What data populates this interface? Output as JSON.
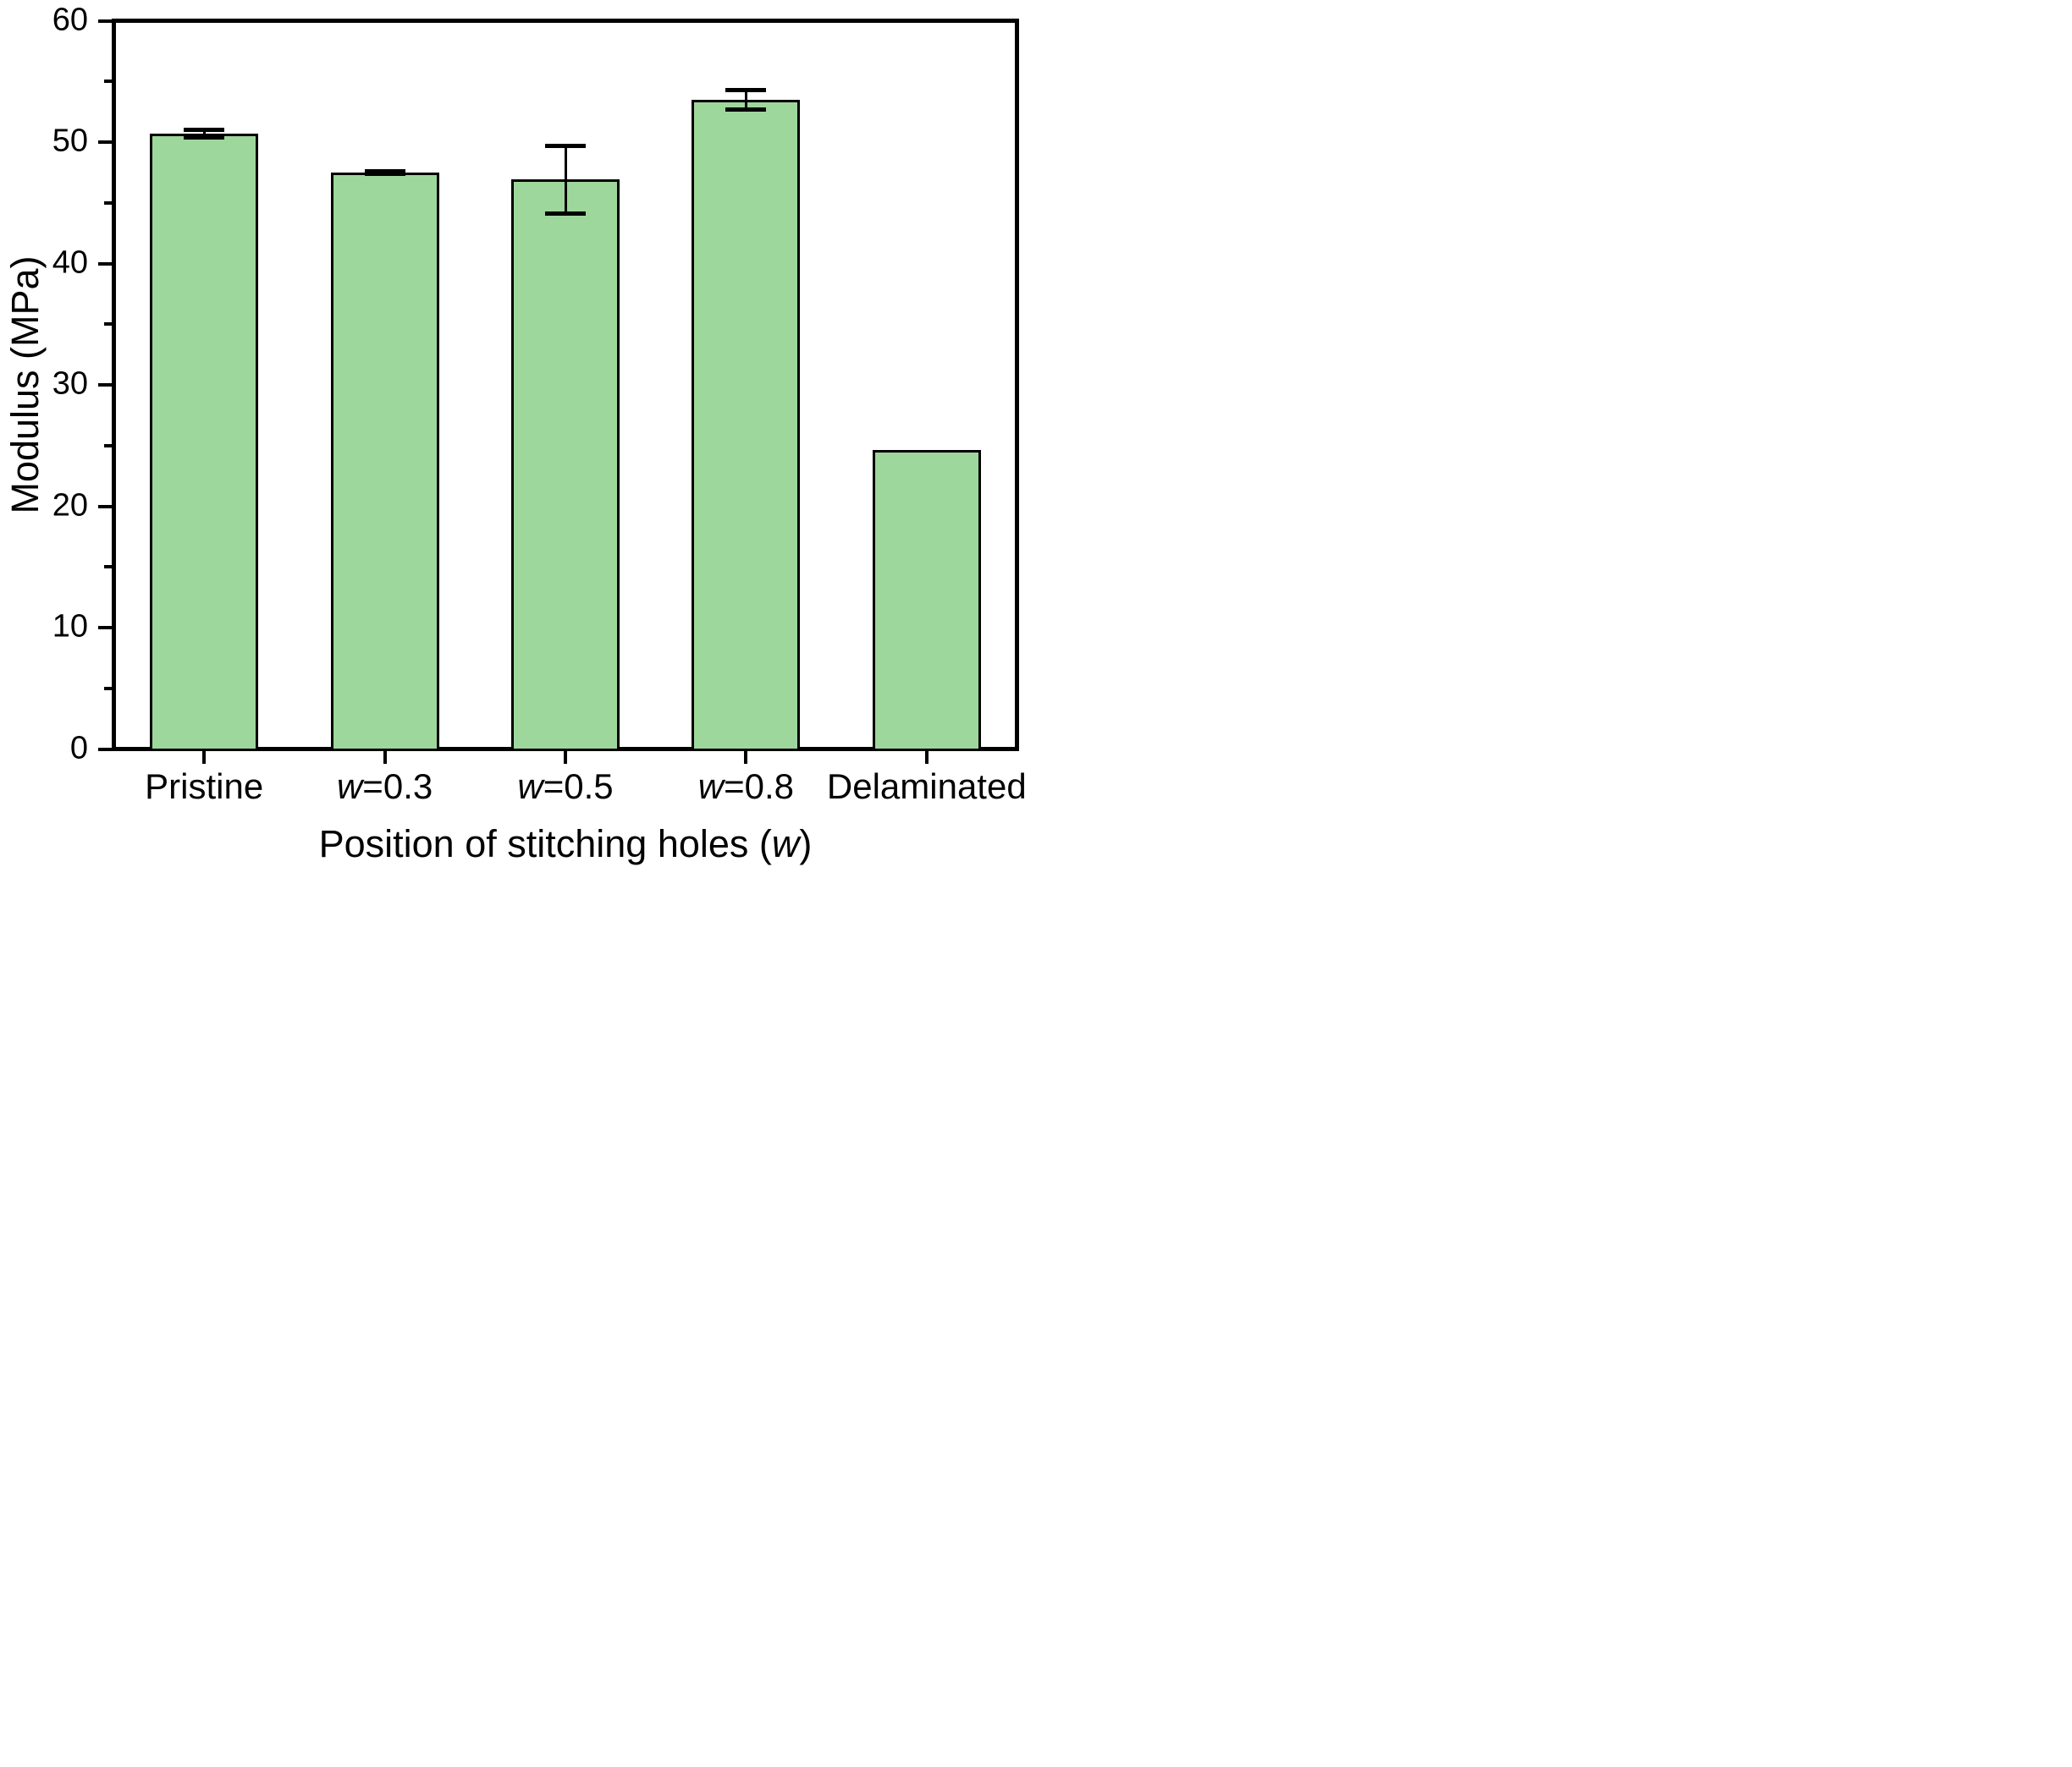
{
  "chart_data": {
    "type": "bar",
    "title": "",
    "ylabel": "Modulus (MPa)",
    "xlabel_plain": "Position of stitching holes (w)",
    "xlabel_parts": [
      {
        "text": "Position of stitching holes (",
        "italic": false
      },
      {
        "text": "w",
        "italic": true
      },
      {
        "text": ")",
        "italic": false
      }
    ],
    "categories_plain": [
      "Pristine",
      "w=0.3",
      "w=0.5",
      "w=0.8",
      "Delaminated"
    ],
    "categories": [
      {
        "parts": [
          {
            "text": "Pristine",
            "italic": false
          }
        ]
      },
      {
        "parts": [
          {
            "text": "w",
            "italic": true
          },
          {
            "text": "=0.3",
            "italic": false
          }
        ]
      },
      {
        "parts": [
          {
            "text": "w",
            "italic": true
          },
          {
            "text": "=0.5",
            "italic": false
          }
        ]
      },
      {
        "parts": [
          {
            "text": "w",
            "italic": true
          },
          {
            "text": "=0.8",
            "italic": false
          }
        ]
      },
      {
        "parts": [
          {
            "text": "Delaminated",
            "italic": false
          }
        ]
      }
    ],
    "values": [
      50.7,
      47.5,
      46.9,
      53.5,
      24.6
    ],
    "errors": [
      0.3,
      0.1,
      2.8,
      0.8,
      null
    ],
    "ylim": [
      0,
      60
    ],
    "yticks_major": [
      0,
      10,
      20,
      30,
      40,
      50,
      60
    ],
    "yticks_minor": [
      5,
      15,
      25,
      35,
      45,
      55
    ],
    "grid": false,
    "legend": null,
    "bar_fill": "#9ED79B",
    "bar_edge": "#000000",
    "axis_color": "#000000",
    "background": "#FFFFFF"
  }
}
